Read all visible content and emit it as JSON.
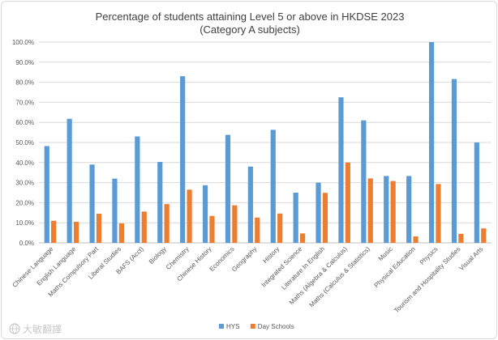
{
  "chart_data": {
    "type": "bar",
    "title": "Percentage of students attaining Level 5 or above in HKDSE 2023",
    "subtitle": "(Category A subjects)",
    "xlabel": "",
    "ylabel": "",
    "ylim": [
      0,
      100
    ],
    "y_ticks": [
      "0.0%",
      "10.0%",
      "20.0%",
      "30.0%",
      "40.0%",
      "50.0%",
      "60.0%",
      "70.0%",
      "80.0%",
      "90.0%",
      "100.0%"
    ],
    "grid": true,
    "legend_position": "bottom",
    "categories": [
      "Chinese Language",
      "English Language",
      "Maths Compulsory Part",
      "Liberal Studies",
      "BAFS (Acct)",
      "Biology",
      "Chemistry",
      "Chinese History",
      "Economics",
      "Geography",
      "History",
      "Integrated Science",
      "Literature In English",
      "Maths (Algebra & Calculus)",
      "Maths (Calculus & Statistics)",
      "Music",
      "Physical Education",
      "Physics",
      "Tourism and Hospitality Studies",
      "Visual Arts"
    ],
    "series": [
      {
        "name": "HYS",
        "color": "#5b9bd5",
        "values": [
          48.2,
          61.8,
          39.0,
          32.0,
          53.0,
          40.3,
          83.0,
          28.7,
          53.8,
          38.0,
          56.3,
          25.0,
          30.0,
          72.5,
          61.0,
          33.3,
          33.3,
          100.0,
          81.6,
          50.0
        ]
      },
      {
        "name": "Day Schools",
        "color": "#ed7d31",
        "values": [
          11.0,
          10.5,
          14.5,
          9.7,
          15.6,
          19.3,
          26.5,
          13.4,
          18.7,
          12.6,
          14.6,
          4.7,
          24.9,
          40.0,
          32.1,
          30.8,
          3.2,
          29.3,
          4.5,
          7.2
        ]
      }
    ]
  },
  "watermark": {
    "text": "大敏翻譯",
    "icon": "globe-icon"
  }
}
